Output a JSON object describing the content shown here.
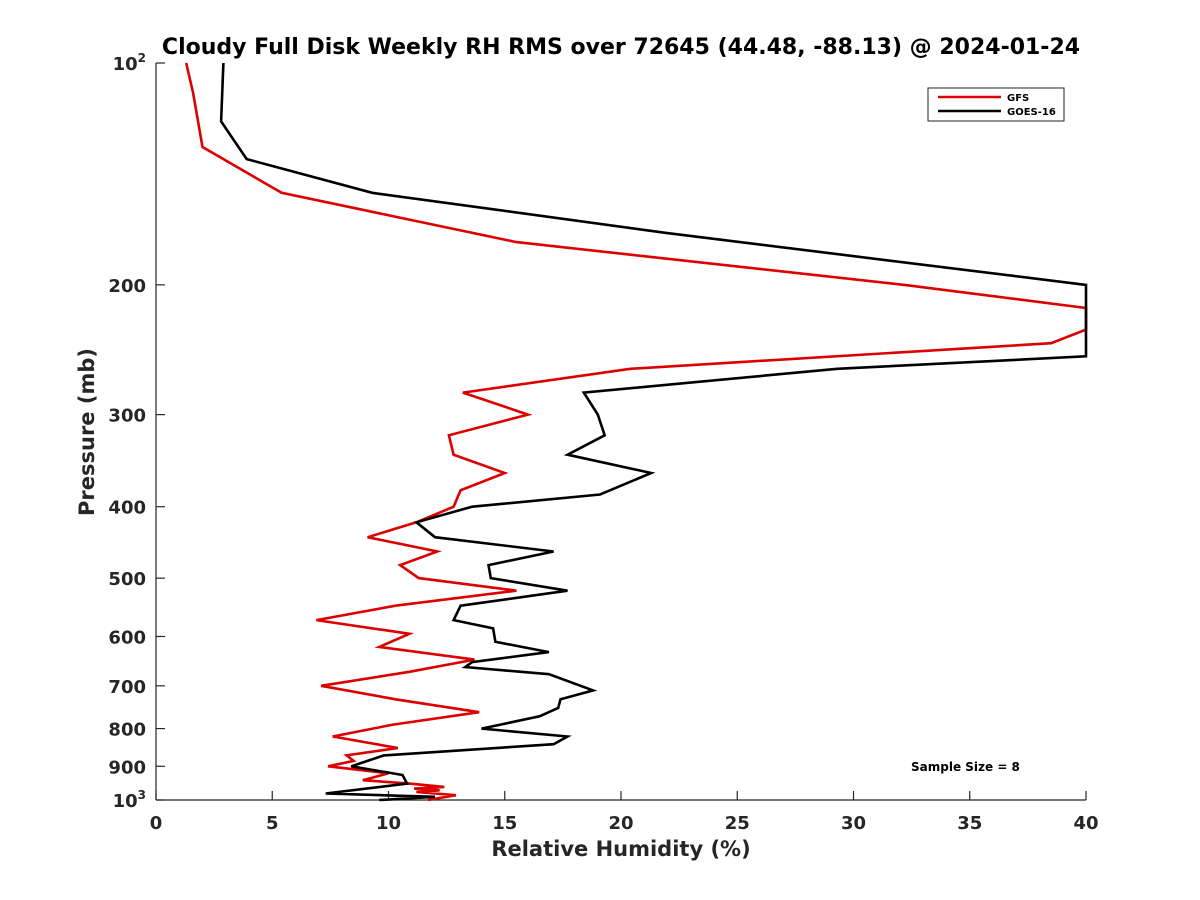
{
  "chart_data": {
    "type": "line",
    "title": "Cloudy Full Disk Weekly RH RMS over 72645 (44.48, -88.13) @ 2024-01-24",
    "xlabel": "Relative Humidity (%)",
    "ylabel": "Pressure (mb)",
    "xlim": [
      0,
      40
    ],
    "ylim": [
      100,
      1000
    ],
    "yscale": "log",
    "y_reversed": true,
    "x_ticks": [
      "0",
      "5",
      "10",
      "15",
      "20",
      "25",
      "30",
      "35",
      "40"
    ],
    "y_ticks": [
      {
        "value": 100,
        "base": "10",
        "exp": "2"
      },
      {
        "value": 200,
        "label": "200"
      },
      {
        "value": 300,
        "label": "300"
      },
      {
        "value": 400,
        "label": "400"
      },
      {
        "value": 500,
        "label": "500"
      },
      {
        "value": 600,
        "label": "600"
      },
      {
        "value": 700,
        "label": "700"
      },
      {
        "value": 800,
        "label": "800"
      },
      {
        "value": 900,
        "label": "900"
      },
      {
        "value": 1000,
        "base": "10",
        "exp": "3"
      }
    ],
    "grid": false,
    "legend_position": "top-right",
    "annotation": "Sample Size = 8",
    "series": [
      {
        "name": "GFS",
        "color": "#dd0000",
        "x": [
          1.3,
          1.6,
          2.0,
          5.4,
          15.5,
          32.2,
          40.0,
          40.0,
          38.5,
          20.4,
          13.2,
          16.0,
          12.6,
          12.8,
          15.0,
          13.1,
          12.8,
          11.2,
          9.1,
          12.1,
          10.5,
          11.3,
          15.5,
          10.3,
          6.9,
          10.9,
          9.6,
          13.7,
          10.9,
          7.1,
          10.3,
          13.9,
          10.2,
          7.6,
          10.4,
          8.2,
          8.5,
          7.4,
          10.0,
          8.9,
          10.9,
          12.4,
          11.1,
          12.2,
          11.2,
          12.9,
          11.7
        ],
        "y": [
          100,
          110,
          130,
          150,
          175,
          200,
          215,
          230,
          240,
          260,
          280,
          300,
          320,
          340,
          360,
          380,
          400,
          420,
          440,
          460,
          480,
          500,
          520,
          545,
          570,
          595,
          620,
          645,
          670,
          700,
          730,
          760,
          790,
          820,
          850,
          870,
          885,
          900,
          920,
          940,
          950,
          960,
          965,
          970,
          975,
          985,
          1000
        ]
      },
      {
        "name": "GOES-16",
        "color": "#000000",
        "x": [
          2.9,
          2.8,
          3.9,
          9.3,
          21.9,
          40.0,
          40.0,
          29.3,
          18.4,
          19.0,
          19.3,
          17.7,
          21.3,
          19.1,
          13.6,
          11.2,
          12.0,
          17.1,
          14.3,
          14.4,
          17.7,
          13.1,
          12.8,
          14.5,
          14.6,
          16.9,
          13.6,
          13.3,
          16.9,
          18.8,
          17.4,
          17.3,
          16.5,
          14.0,
          17.7,
          17.1,
          9.8,
          8.4,
          10.6,
          10.8,
          7.3,
          12.0,
          9.6
        ],
        "y": [
          100,
          120,
          135,
          150,
          170,
          200,
          250,
          260,
          280,
          300,
          320,
          340,
          360,
          385,
          400,
          420,
          440,
          460,
          480,
          500,
          520,
          545,
          570,
          585,
          610,
          630,
          650,
          660,
          675,
          710,
          730,
          750,
          770,
          800,
          820,
          840,
          870,
          900,
          925,
          950,
          980,
          990,
          1000
        ]
      }
    ]
  }
}
